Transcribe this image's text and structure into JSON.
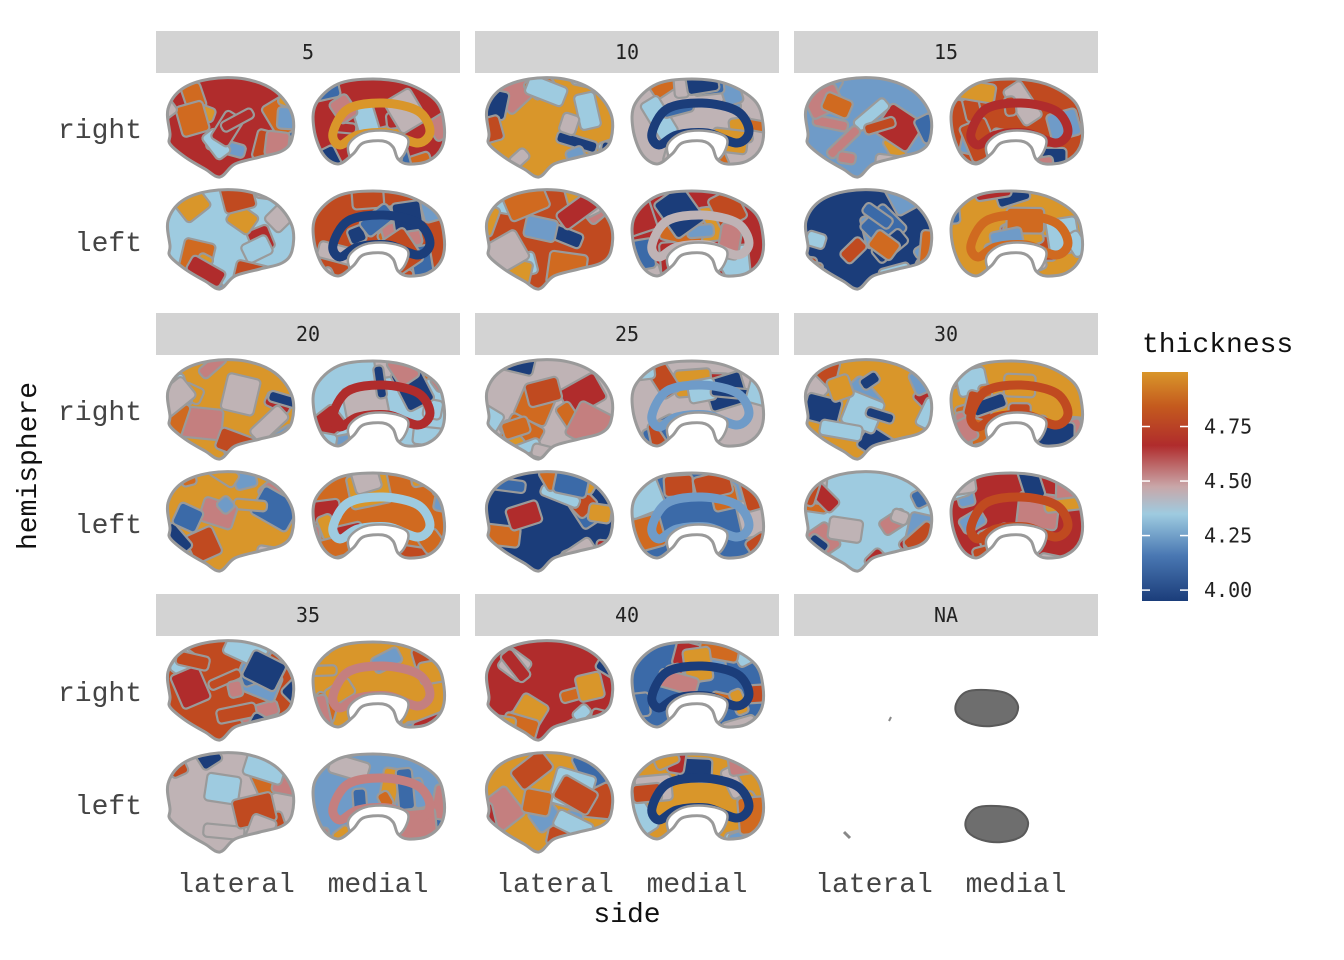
{
  "figure": {
    "facet_labels": [
      "5",
      "10",
      "15",
      "20",
      "25",
      "30",
      "35",
      "40",
      "NA"
    ],
    "row_labels": {
      "right": "right",
      "left": "left"
    },
    "x_tick_labels": [
      "lateral",
      "medial"
    ],
    "x_axis_title": "side",
    "y_axis_title": "hemisphere",
    "legend": {
      "title": "thickness",
      "ticks": [
        "4.00",
        "4.25",
        "4.50",
        "4.75"
      ],
      "tick_values": [
        4.0,
        4.25,
        4.5,
        4.75
      ],
      "range": [
        3.95,
        5.0
      ],
      "colors": [
        "#1b3d7a",
        "#3b6aa8",
        "#6f9bc8",
        "#9ecbe0",
        "#bfb3b5",
        "#c47f7f",
        "#b02c2c",
        "#c04a20",
        "#d06a20",
        "#d9962a"
      ]
    },
    "na_color": "#6e6e6e",
    "border_color": "#9a9a9a",
    "strip_color": "#d3d3d3"
  }
}
